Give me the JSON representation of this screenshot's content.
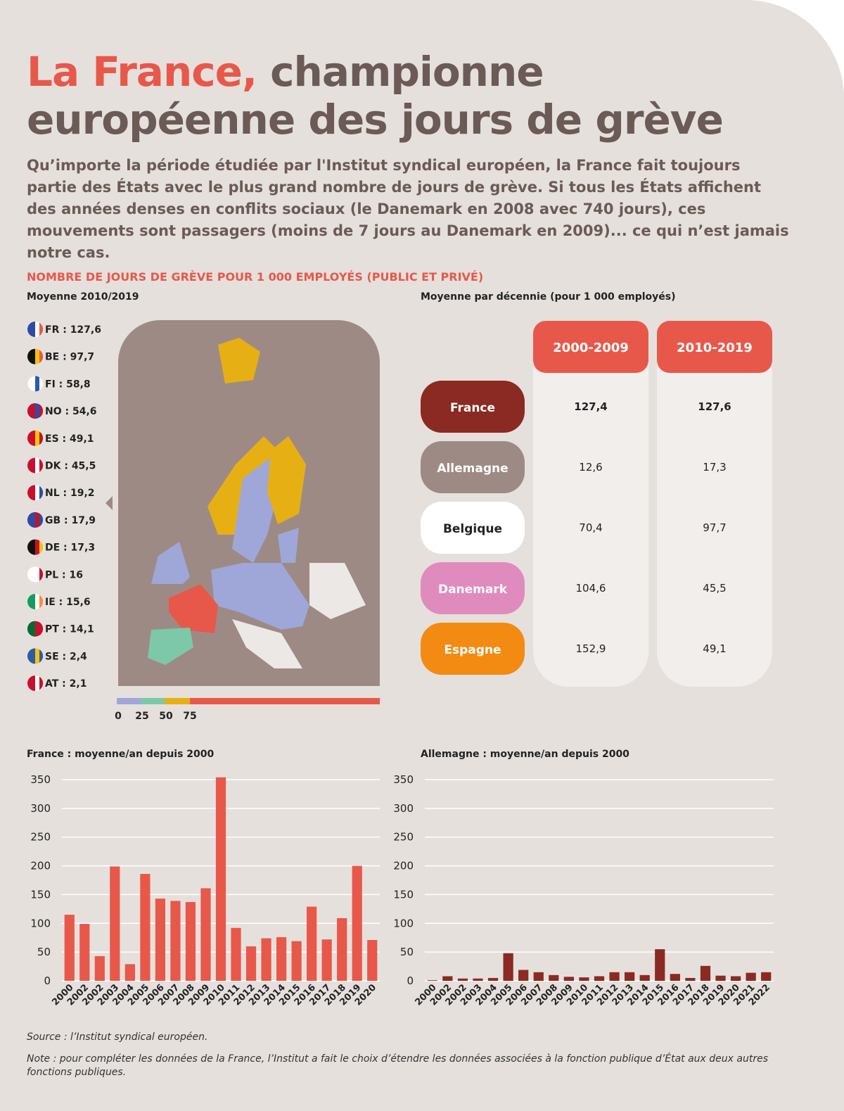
{
  "header": {
    "title_highlight": "La France,",
    "title_rest": " championne",
    "title_line2": "européenne des jours de grève",
    "intro": "Qu’importe la période étudiée par l'Institut syndical européen, la France fait toujours partie des États avec le plus grand nombre de jours de grève. Si tous les États affichent des années denses en conflits sociaux (le Danemark en 2008 avec 740 jours), ces mouvements sont passagers (moins de 7 jours au Danemark en 2009)... ce qui n’est jamais notre cas."
  },
  "section_title": "NOMBRE DE JOURS DE GRÈVE POUR 1 000 EMPLOYÉS (PUBLIC ET PRIVÉ)",
  "map": {
    "subtitle": "Moyenne 2010/2019",
    "legend": [
      "FR : 127,6",
      "BE : 97,7",
      "FI : 58,8",
      "NO : 54,6",
      "ES : 49,1",
      "DK : 45,5",
      "NL : 19,2",
      "GB : 17,9",
      "DE : 17,3",
      "PL : 16",
      "IE : 15,6",
      "PT : 14,1",
      "SE : 2,4",
      "AT : 2,1"
    ],
    "scale": [
      "0",
      "25",
      "50",
      "75"
    ]
  },
  "table": {
    "subtitle": "Moyenne par décennie (pour 1 000 employés)",
    "columns": [
      "2000-2009",
      "2010-2019"
    ],
    "rows": [
      [
        "France",
        "127,4",
        "127,6"
      ],
      [
        "Allemagne",
        "12,6",
        "17,3"
      ],
      [
        "Belgique",
        "70,4",
        "97,7"
      ],
      [
        "Danemark",
        "104,6",
        "45,5"
      ],
      [
        "Espagne",
        "152,9",
        "49,1"
      ]
    ]
  },
  "chart_data": [
    {
      "type": "bar",
      "title": "France : moyenne/an depuis 2000",
      "color": "#e8584a",
      "categories": [
        "2000",
        "2002",
        "2002",
        "2003",
        "2004",
        "2005",
        "2006",
        "2007",
        "2008",
        "2009",
        "2010",
        "2011",
        "2012",
        "2013",
        "2014",
        "2015",
        "2016",
        "2017",
        "2018",
        "2019",
        "2020"
      ],
      "values": [
        115,
        99,
        43,
        199,
        29,
        186,
        143,
        139,
        137,
        161,
        354,
        92,
        60,
        74,
        76,
        69,
        129,
        72,
        109,
        200,
        71
      ],
      "ylim": [
        0,
        350
      ],
      "yticks": [
        0,
        50,
        100,
        150,
        200,
        250,
        300,
        350
      ],
      "grid": true
    },
    {
      "type": "bar",
      "title": "Allemagne : moyenne/an depuis 2000",
      "color": "#8b2a22",
      "categories": [
        "2000",
        "2002",
        "2002",
        "2003",
        "2004",
        "2005",
        "2006",
        "2007",
        "2008",
        "2009",
        "2010",
        "2011",
        "2012",
        "2013",
        "2014",
        "2015",
        "2016",
        "2017",
        "2018",
        "2019",
        "2020",
        "2021",
        "2022"
      ],
      "values": [
        1,
        8,
        4,
        4,
        5,
        48,
        19,
        15,
        10,
        7,
        6,
        8,
        15,
        15,
        10,
        55,
        12,
        5,
        26,
        9,
        8,
        14,
        15
      ],
      "ylim": [
        0,
        350
      ],
      "yticks": [
        0,
        50,
        100,
        150,
        200,
        250,
        300,
        350
      ],
      "grid": true
    }
  ],
  "footer": {
    "source": "Source : l’Institut syndical européen.",
    "note": "Note : pour compléter les données de la France, l’Institut a fait le choix d’étendre les données associées à la fonction publique d’État aux deux autres fonctions publiques."
  }
}
